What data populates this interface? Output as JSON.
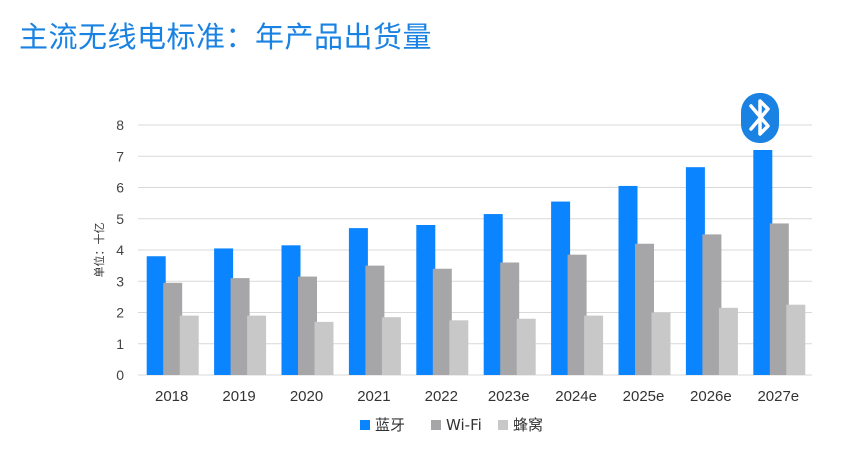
{
  "page": {
    "title": "主流无线电标准：年产品出货量"
  },
  "icon": "bluetooth-logo-icon",
  "colors": {
    "title": "#1a82e2",
    "bluetooth_badge": "#1a82e2",
    "grid": "#d9d9d9"
  },
  "chart_data": {
    "type": "bar",
    "title": "",
    "xlabel": "",
    "ylabel": "单位：十亿",
    "ylim": [
      0,
      8
    ],
    "yticks": [
      0,
      1,
      2,
      3,
      4,
      5,
      6,
      7,
      8
    ],
    "grid": true,
    "legend_position": "bottom",
    "categories": [
      "2018",
      "2019",
      "2020",
      "2021",
      "2022",
      "2023e",
      "2024e",
      "2025e",
      "2026e",
      "2027e"
    ],
    "series": [
      {
        "name": "蓝牙",
        "color": "#0a84ff",
        "values": [
          3.8,
          4.05,
          4.15,
          4.7,
          4.8,
          5.15,
          5.55,
          6.05,
          6.65,
          7.2
        ]
      },
      {
        "name": "Wi-Fi",
        "color": "#a6a6a8",
        "values": [
          2.95,
          3.1,
          3.15,
          3.5,
          3.4,
          3.6,
          3.85,
          4.2,
          4.5,
          4.85
        ]
      },
      {
        "name": "蜂窝",
        "color": "#c8c8c8",
        "values": [
          1.9,
          1.9,
          1.7,
          1.85,
          1.75,
          1.8,
          1.9,
          2.0,
          2.15,
          2.25
        ]
      }
    ]
  }
}
